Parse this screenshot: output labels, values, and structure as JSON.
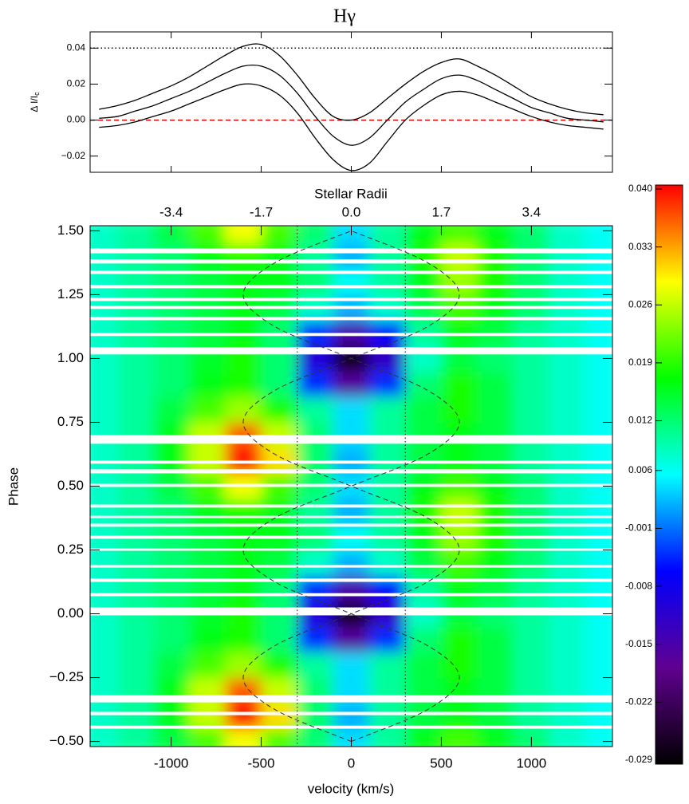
{
  "chart_data": [
    {
      "type": "line",
      "title": "Hγ",
      "ylabel": "Δ I/I",
      "ylabel_subscript": "c",
      "x": [
        -1400,
        -1300,
        -1200,
        -1100,
        -1000,
        -900,
        -800,
        -700,
        -600,
        -500,
        -400,
        -300,
        -200,
        -100,
        0,
        100,
        200,
        300,
        400,
        500,
        600,
        700,
        800,
        900,
        1000,
        1100,
        1200,
        1300,
        1400
      ],
      "xlim": [
        -1450,
        1450
      ],
      "xticks": [
        -1000,
        -500,
        0,
        500,
        1000
      ],
      "show_xtick_labels": false,
      "ylim": [
        -0.029,
        0.049
      ],
      "yticks": [
        {
          "value": -0.02,
          "label": "−0.02"
        },
        {
          "value": 0,
          "label": "0.00"
        },
        {
          "value": 0.02,
          "label": "0.02"
        },
        {
          "value": 0.04,
          "label": "0.04"
        }
      ],
      "series": [
        {
          "color": "#000000",
          "values": [
            0.006,
            0.008,
            0.011,
            0.015,
            0.019,
            0.024,
            0.03,
            0.036,
            0.041,
            0.042,
            0.036,
            0.025,
            0.012,
            0.002,
            0.0,
            0.004,
            0.012,
            0.02,
            0.027,
            0.032,
            0.034,
            0.03,
            0.025,
            0.019,
            0.013,
            0.009,
            0.006,
            0.004,
            0.003
          ]
        },
        {
          "color": "#000000",
          "values": [
            0.001,
            0.002,
            0.005,
            0.008,
            0.012,
            0.016,
            0.021,
            0.026,
            0.03,
            0.03,
            0.025,
            0.015,
            0.002,
            -0.009,
            -0.014,
            -0.01,
            0.0,
            0.01,
            0.017,
            0.023,
            0.025,
            0.022,
            0.017,
            0.012,
            0.007,
            0.004,
            0.001,
            0.0,
            -0.001
          ]
        },
        {
          "color": "#000000",
          "values": [
            -0.004,
            -0.003,
            -0.001,
            0.002,
            0.005,
            0.009,
            0.013,
            0.017,
            0.02,
            0.019,
            0.014,
            0.004,
            -0.01,
            -0.022,
            -0.028,
            -0.024,
            -0.012,
            0.0,
            0.008,
            0.014,
            0.016,
            0.014,
            0.01,
            0.006,
            0.002,
            -0.001,
            -0.003,
            -0.004,
            -0.005
          ]
        }
      ],
      "reference_lines": [
        {
          "value": 0.04,
          "color": "#000000",
          "dash": "dotted"
        },
        {
          "value": 0,
          "color": "#e00000",
          "dash": "dashed"
        }
      ]
    },
    {
      "type": "heatmap",
      "xlabel": "velocity (km/s)",
      "ylabel": "Phase",
      "x2label": "Stellar Radii",
      "x": [
        -1400,
        -1200,
        -1000,
        -800,
        -600,
        -400,
        -200,
        0,
        200,
        400,
        600,
        800,
        1000,
        1200,
        1400
      ],
      "y": [
        -0.5,
        -0.4,
        -0.3,
        -0.2,
        -0.1,
        0.0,
        0.1,
        0.2,
        0.3,
        0.4,
        0.5,
        0.6,
        0.7,
        0.8,
        0.9,
        1.0,
        1.1,
        1.2,
        1.3,
        1.4,
        1.5
      ],
      "z": [
        [
          0.008,
          0.01,
          0.014,
          0.02,
          0.028,
          0.02,
          0.012,
          0.004,
          0.01,
          0.016,
          0.02,
          0.016,
          0.012,
          0.008,
          0.006
        ],
        [
          0.008,
          0.01,
          0.016,
          0.026,
          0.04,
          0.03,
          0.012,
          0.002,
          0.01,
          0.014,
          0.016,
          0.014,
          0.01,
          0.008,
          0.006
        ],
        [
          0.008,
          0.01,
          0.016,
          0.026,
          0.036,
          0.026,
          0.012,
          0.004,
          0.01,
          0.014,
          0.016,
          0.014,
          0.01,
          0.008,
          0.006
        ],
        [
          0.008,
          0.01,
          0.014,
          0.02,
          0.024,
          0.018,
          0.01,
          0.004,
          0.01,
          0.014,
          0.018,
          0.014,
          0.01,
          0.008,
          0.006
        ],
        [
          0.008,
          0.01,
          0.012,
          0.016,
          0.018,
          0.012,
          -0.004,
          -0.016,
          -0.004,
          0.012,
          0.018,
          0.014,
          0.01,
          0.008,
          0.006
        ],
        [
          0.008,
          0.01,
          0.012,
          0.015,
          0.018,
          0.012,
          -0.01,
          -0.028,
          -0.012,
          0.008,
          0.014,
          0.012,
          0.01,
          0.008,
          0.006
        ],
        [
          0.008,
          0.01,
          0.012,
          0.014,
          0.016,
          0.012,
          -0.004,
          -0.015,
          -0.006,
          0.01,
          0.016,
          0.014,
          0.01,
          0.008,
          0.006
        ],
        [
          0.008,
          0.01,
          0.012,
          0.014,
          0.016,
          0.014,
          0.008,
          0.002,
          0.008,
          0.014,
          0.02,
          0.016,
          0.012,
          0.008,
          0.006
        ],
        [
          0.008,
          0.01,
          0.012,
          0.014,
          0.016,
          0.016,
          0.012,
          0.006,
          0.01,
          0.016,
          0.024,
          0.018,
          0.012,
          0.008,
          0.006
        ],
        [
          0.008,
          0.01,
          0.012,
          0.016,
          0.018,
          0.016,
          0.01,
          0.002,
          0.01,
          0.018,
          0.026,
          0.018,
          0.012,
          0.008,
          0.006
        ],
        [
          0.008,
          0.01,
          0.014,
          0.02,
          0.028,
          0.02,
          0.012,
          0.004,
          0.01,
          0.016,
          0.02,
          0.016,
          0.012,
          0.008,
          0.006
        ],
        [
          0.008,
          0.01,
          0.016,
          0.026,
          0.04,
          0.03,
          0.012,
          0.002,
          0.01,
          0.014,
          0.016,
          0.014,
          0.01,
          0.008,
          0.006
        ],
        [
          0.008,
          0.01,
          0.016,
          0.026,
          0.036,
          0.026,
          0.012,
          0.004,
          0.01,
          0.014,
          0.016,
          0.014,
          0.01,
          0.008,
          0.006
        ],
        [
          0.008,
          0.01,
          0.014,
          0.02,
          0.024,
          0.018,
          0.01,
          0.004,
          0.01,
          0.014,
          0.018,
          0.014,
          0.01,
          0.008,
          0.006
        ],
        [
          0.008,
          0.01,
          0.012,
          0.016,
          0.018,
          0.012,
          -0.004,
          -0.016,
          -0.004,
          0.012,
          0.018,
          0.014,
          0.01,
          0.008,
          0.006
        ],
        [
          0.008,
          0.01,
          0.012,
          0.015,
          0.018,
          0.012,
          -0.01,
          -0.028,
          -0.012,
          0.008,
          0.014,
          0.012,
          0.01,
          0.008,
          0.006
        ],
        [
          0.008,
          0.01,
          0.012,
          0.014,
          0.016,
          0.012,
          -0.004,
          -0.015,
          -0.006,
          0.01,
          0.016,
          0.014,
          0.01,
          0.008,
          0.006
        ],
        [
          0.008,
          0.01,
          0.012,
          0.014,
          0.016,
          0.014,
          0.008,
          0.002,
          0.008,
          0.014,
          0.02,
          0.016,
          0.012,
          0.008,
          0.006
        ],
        [
          0.008,
          0.01,
          0.012,
          0.014,
          0.016,
          0.016,
          0.012,
          0.006,
          0.01,
          0.016,
          0.024,
          0.018,
          0.012,
          0.008,
          0.006
        ],
        [
          0.008,
          0.01,
          0.012,
          0.016,
          0.018,
          0.016,
          0.01,
          0.002,
          0.01,
          0.018,
          0.026,
          0.018,
          0.012,
          0.008,
          0.006
        ],
        [
          0.008,
          0.01,
          0.014,
          0.02,
          0.028,
          0.02,
          0.012,
          0.004,
          0.01,
          0.016,
          0.02,
          0.016,
          0.012,
          0.008,
          0.006
        ]
      ],
      "xlim": [
        -1450,
        1450
      ],
      "xticks": [
        -1000,
        -500,
        0,
        500,
        1000
      ],
      "ylim": [
        -0.52,
        1.52
      ],
      "yticks": [
        {
          "value": -0.5,
          "label": "−0.50"
        },
        {
          "value": -0.25,
          "label": "−0.25"
        },
        {
          "value": 0,
          "label": "0.00"
        },
        {
          "value": 0.25,
          "label": "0.25"
        },
        {
          "value": 0.5,
          "label": "0.50"
        },
        {
          "value": 0.75,
          "label": "0.75"
        },
        {
          "value": 1,
          "label": "1.00"
        },
        {
          "value": 1.25,
          "label": "1.25"
        },
        {
          "value": 1.5,
          "label": "1.50"
        }
      ],
      "x2lim": [
        -4.93,
        4.93
      ],
      "x2ticks": [
        -3.4,
        -1.7,
        {
          "value": 0,
          "label": "0.0"
        },
        1.7,
        3.4
      ],
      "gaps": [
        [
          1.412,
          1.431
        ],
        [
          1.372,
          1.388
        ],
        [
          1.331,
          1.344
        ],
        [
          1.275,
          1.288
        ],
        [
          1.225,
          1.238
        ],
        [
          1.194,
          1.206
        ],
        [
          1.15,
          1.163
        ],
        [
          1.088,
          1.1
        ],
        [
          1.016,
          1.044
        ],
        [
          0.666,
          0.7
        ],
        [
          0.588,
          0.6
        ],
        [
          0.55,
          0.566
        ],
        [
          0.497,
          0.509
        ],
        [
          0.416,
          0.428
        ],
        [
          0.375,
          0.384
        ],
        [
          0.341,
          0.353
        ],
        [
          0.294,
          0.306
        ],
        [
          0.247,
          0.256
        ],
        [
          0.181,
          0.191
        ],
        [
          0.125,
          0.138
        ],
        [
          0.069,
          0.081
        ],
        [
          -0.006,
          0.025
        ],
        [
          -0.347,
          -0.319
        ],
        [
          -0.397,
          -0.384
        ],
        [
          -0.45,
          -0.438
        ]
      ],
      "gap_color": "#ffffff",
      "curves": [
        {
          "color": "#333333",
          "dash": "dashed",
          "y": [
            -0.5,
            -0.375,
            -0.25,
            -0.125,
            0,
            0.125,
            0.25,
            0.375,
            0.5,
            0.625,
            0.75,
            0.875,
            1,
            1.125,
            1.25,
            1.375,
            1.5
          ],
          "x": [
            0,
            -424,
            -600,
            -424,
            0,
            424,
            600,
            424,
            0,
            -424,
            -600,
            -424,
            0,
            424,
            600,
            424,
            0
          ]
        },
        {
          "color": "#333333",
          "dash": "dashed",
          "y": [
            -0.5,
            -0.375,
            -0.25,
            -0.125,
            0,
            0.125,
            0.25,
            0.375,
            0.5,
            0.625,
            0.75,
            0.875,
            1,
            1.125,
            1.25,
            1.375,
            1.5
          ],
          "x": [
            0,
            424,
            600,
            424,
            0,
            -424,
            -600,
            -424,
            0,
            424,
            600,
            424,
            0,
            -424,
            -600,
            -424,
            0
          ]
        }
      ],
      "vlines": [
        {
          "value": -300,
          "color": "#333333",
          "dash": "dotted"
        },
        {
          "value": 300,
          "color": "#333333",
          "dash": "dotted"
        }
      ],
      "zlim": [
        -0.029,
        0.04
      ],
      "zticks": [
        {
          "value": 0.04,
          "label": "0.040"
        },
        {
          "value": 0.033,
          "label": "0.033"
        },
        {
          "value": 0.026,
          "label": "0.026"
        },
        {
          "value": 0.019,
          "label": "0.019"
        },
        {
          "value": 0.012,
          "label": "0.012"
        },
        {
          "value": 0.006,
          "label": "0.006"
        },
        {
          "value": -0.001,
          "label": "-0.001"
        },
        {
          "value": -0.008,
          "label": "-0.008"
        },
        {
          "value": -0.015,
          "label": "-0.015"
        },
        {
          "value": -0.022,
          "label": "-0.022"
        },
        {
          "value": -0.029,
          "label": "-0.029"
        }
      ],
      "colormap": [
        "#000000",
        "#600090",
        "#0000ff",
        "#00ffff",
        "#00ff00",
        "#ffff00",
        "#ff0000"
      ]
    }
  ]
}
